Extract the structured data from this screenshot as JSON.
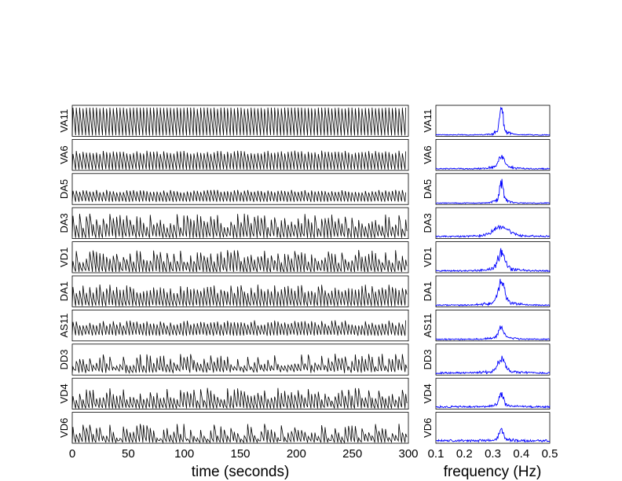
{
  "chart_data": [
    {
      "type": "line",
      "xlabel": "time (seconds)",
      "xlim": [
        0,
        300
      ],
      "xticks": [
        "0",
        "50",
        "100",
        "150",
        "200",
        "250",
        "300"
      ],
      "line_color": "#000000",
      "panels": [
        {
          "label": "VA11",
          "period_s": 3.0,
          "min": 0.0,
          "max": 1.0,
          "noise": 0.05
        },
        {
          "label": "VA6",
          "period_s": 3.0,
          "min": 0.0,
          "max": 0.62,
          "noise": 0.08
        },
        {
          "label": "DA5",
          "period_s": 3.0,
          "min": 0.08,
          "max": 0.45,
          "noise": 0.06
        },
        {
          "label": "DA3",
          "period_s": 3.0,
          "min": 0.0,
          "max": 0.6,
          "noise": 0.35
        },
        {
          "label": "VD1",
          "period_s": 3.0,
          "min": 0.0,
          "max": 0.55,
          "noise": 0.3
        },
        {
          "label": "DA1",
          "period_s": 3.0,
          "min": 0.0,
          "max": 0.62,
          "noise": 0.2
        },
        {
          "label": "AS11",
          "period_s": 3.0,
          "min": 0.18,
          "max": 0.62,
          "noise": 0.12
        },
        {
          "label": "DD3",
          "period_s": 3.0,
          "min": 0.1,
          "max": 0.5,
          "noise": 0.3
        },
        {
          "label": "VD4",
          "period_s": 3.0,
          "min": 0.0,
          "max": 0.5,
          "noise": 0.3
        },
        {
          "label": "VD6",
          "period_s": 3.0,
          "min": 0.0,
          "max": 0.4,
          "noise": 0.35
        }
      ]
    },
    {
      "type": "line",
      "xlabel": "frequency (Hz)",
      "xlim": [
        0.1,
        0.5
      ],
      "xticks": [
        "0.1",
        "0.2",
        "0.3",
        "0.4",
        "0.5"
      ],
      "line_color": "#0000ff",
      "panels": [
        {
          "label": "VA11",
          "peak_hz": 0.33,
          "peak": 0.9,
          "width": 0.006,
          "base": 0.03
        },
        {
          "label": "VA6",
          "peak_hz": 0.33,
          "peak": 0.45,
          "width": 0.01,
          "base": 0.04
        },
        {
          "label": "DA5",
          "peak_hz": 0.33,
          "peak": 0.75,
          "width": 0.006,
          "base": 0.03
        },
        {
          "label": "DA3",
          "peak_hz": 0.33,
          "peak": 0.35,
          "width": 0.025,
          "base": 0.05
        },
        {
          "label": "VD1",
          "peak_hz": 0.33,
          "peak": 0.6,
          "width": 0.012,
          "base": 0.05
        },
        {
          "label": "DA1",
          "peak_hz": 0.33,
          "peak": 0.7,
          "width": 0.012,
          "base": 0.04
        },
        {
          "label": "AS11",
          "peak_hz": 0.33,
          "peak": 0.4,
          "width": 0.01,
          "base": 0.04
        },
        {
          "label": "DD3",
          "peak_hz": 0.33,
          "peak": 0.55,
          "width": 0.012,
          "base": 0.06
        },
        {
          "label": "VD4",
          "peak_hz": 0.33,
          "peak": 0.4,
          "width": 0.008,
          "base": 0.07
        },
        {
          "label": "VD6",
          "peak_hz": 0.33,
          "peak": 0.35,
          "width": 0.008,
          "base": 0.08
        }
      ]
    }
  ]
}
